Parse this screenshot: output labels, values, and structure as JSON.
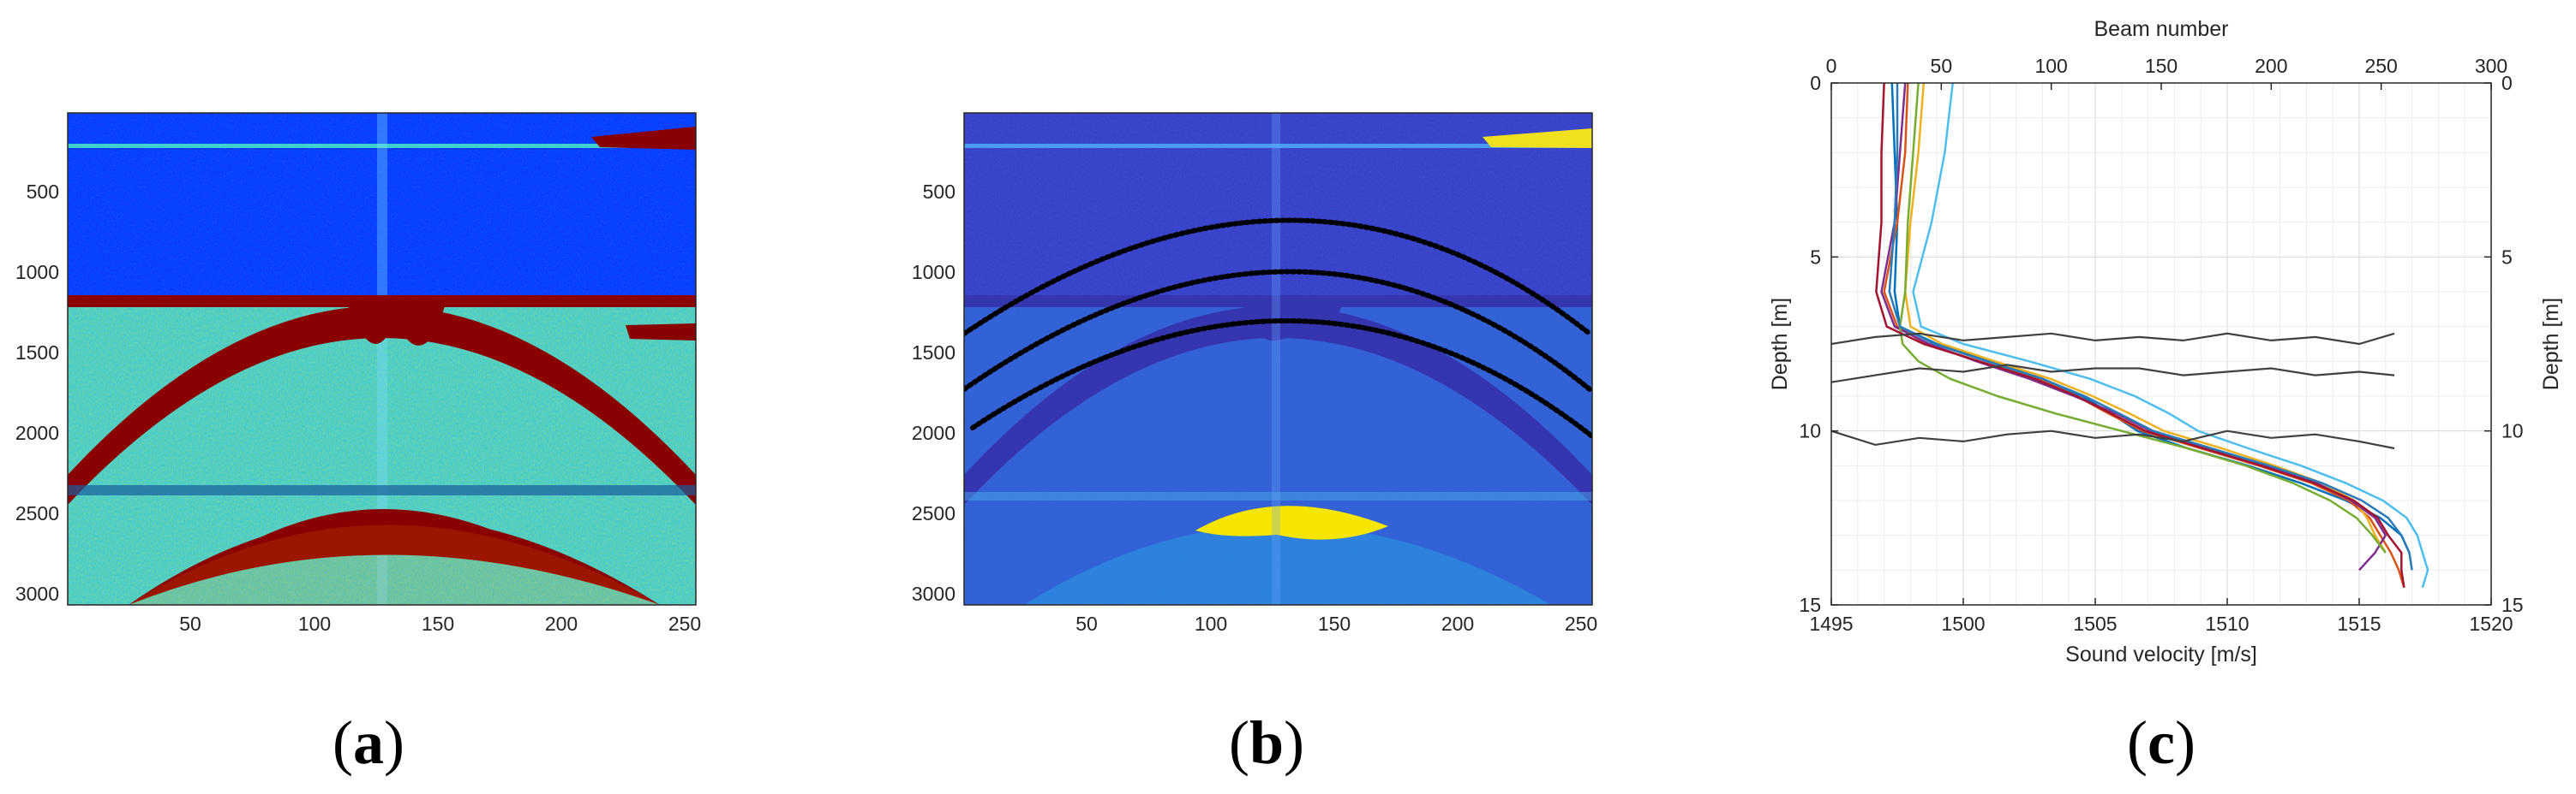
{
  "panels": [
    {
      "id": "a",
      "label": "a",
      "open": "(",
      "close": ")",
      "type": "heatmap",
      "colormap": "jet",
      "y_ticks": [
        "500",
        "1000",
        "1500",
        "2000",
        "2500",
        "3000"
      ],
      "x_ticks": [
        "50",
        "100",
        "150",
        "200",
        "250"
      ]
    },
    {
      "id": "b",
      "label": "b",
      "open": "(",
      "close": ")",
      "type": "heatmap",
      "colormap": "parula",
      "y_ticks": [
        "500",
        "1000",
        "1500",
        "2000",
        "2500",
        "3000"
      ],
      "x_ticks": [
        "50",
        "100",
        "150",
        "200",
        "250"
      ]
    },
    {
      "id": "c",
      "label": "c",
      "open": "(",
      "close": ")",
      "type": "line"
    }
  ],
  "chart_data": [
    {
      "type": "heatmap",
      "panel": "a",
      "x_range": [
        1,
        256
      ],
      "y_range": [
        1,
        3072
      ],
      "x_ticks": [
        50,
        100,
        150,
        200,
        250
      ],
      "y_ticks": [
        500,
        1000,
        1500,
        2000,
        2500,
        3000
      ],
      "colormap": "jet",
      "features": {
        "horizontal_band_y": [
          120,
          1200,
          2400
        ],
        "arc_apex": [
          130,
          1180
        ],
        "arc_ends": [
          [
            1,
            2100
          ],
          [
            256,
            2100
          ]
        ],
        "lower_arc_apex": [
          130,
          2420
        ]
      }
    },
    {
      "type": "heatmap",
      "panel": "b",
      "x_range": [
        1,
        256
      ],
      "y_range": [
        1,
        3072
      ],
      "x_ticks": [
        50,
        100,
        150,
        200,
        250
      ],
      "y_ticks": [
        500,
        1000,
        1500,
        2000,
        2500,
        3000
      ],
      "colormap": "parula",
      "dotted_arcs_apex_y": [
        720,
        860,
        1000
      ]
    },
    {
      "type": "line",
      "panel": "c",
      "xlabel": "Sound velocity [m/s]",
      "ylabel": "Depth [m]",
      "x2label": "Beam number",
      "y2label": "Depth [m]",
      "xlim": [
        1495,
        1520
      ],
      "ylim": [
        15,
        0
      ],
      "x_ticks": [
        1495,
        1500,
        1505,
        1510,
        1515,
        1520
      ],
      "y_ticks": [
        0,
        5,
        10,
        15
      ],
      "x2lim": [
        0,
        300
      ],
      "x2_ticks": [
        0,
        50,
        100,
        150,
        200,
        250,
        300
      ],
      "grid": true,
      "depth_levels": [
        0,
        2,
        4,
        6,
        7,
        7.5,
        8,
        8.5,
        9,
        9.5,
        10,
        10.5,
        11,
        11.5,
        12,
        12.5,
        13,
        13.5,
        14,
        14.5
      ],
      "series": [
        {
          "color": "#0072bd",
          "values": [
            1497.3,
            1497.4,
            1497.5,
            1497.4,
            1497.6,
            1499.0,
            1501.0,
            1503.0,
            1504.5,
            1505.6,
            1506.6,
            1508.5,
            1510.8,
            1512.8,
            1514.5,
            1515.8,
            1516.6,
            1516.9,
            null,
            null
          ]
        },
        {
          "color": "#d95319",
          "values": [
            1497.9,
            1497.8,
            1497.5,
            1497.0,
            1497.5,
            1498.6,
            1500.6,
            1502.8,
            1504.3,
            1505.5,
            1506.8,
            1509.0,
            1511.2,
            1513.2,
            1514.6,
            1515.4,
            1515.8,
            1516.2,
            1516.5,
            1516.7
          ]
        },
        {
          "color": "#edb120",
          "values": [
            1498.5,
            1498.3,
            1498.0,
            1497.8,
            1498.0,
            1499.2,
            1501.2,
            1503.3,
            1504.9,
            1506.3,
            1507.6,
            1509.8,
            1511.8,
            1513.6,
            1514.8,
            1515.3,
            1515.6,
            1516.0,
            null,
            null
          ]
        },
        {
          "color": "#7e2f8e",
          "values": [
            1497.8,
            1497.6,
            1497.4,
            1496.9,
            1497.4,
            1498.7,
            1500.5,
            1502.5,
            1504.2,
            1505.8,
            1507.1,
            1509.3,
            1511.5,
            1513.4,
            1514.7,
            1515.6,
            1516.0,
            1515.6,
            1515.0,
            null
          ]
        },
        {
          "color": "#77ac30",
          "values": [
            1498.3,
            1498.1,
            1497.9,
            1497.8,
            1497.6,
            1497.7,
            1498.3,
            1499.5,
            1501.3,
            1503.5,
            1506.0,
            1508.5,
            1510.7,
            1512.5,
            1513.9,
            1514.9,
            1515.5,
            1516.0,
            null,
            null
          ]
        },
        {
          "color": "#4dbeee",
          "values": [
            1499.6,
            1499.3,
            1498.8,
            1498.1,
            1498.4,
            1500.0,
            1502.5,
            1504.8,
            1506.5,
            1507.8,
            1508.9,
            1510.8,
            1512.8,
            1514.5,
            1515.9,
            1516.8,
            1517.2,
            1517.4,
            1517.6,
            1517.4
          ]
        },
        {
          "color": "#a2142f",
          "values": [
            1497.0,
            1496.9,
            1496.9,
            1496.7,
            1497.1,
            1498.5,
            1500.6,
            1502.7,
            1504.3,
            1505.6,
            1506.9,
            1509.1,
            1511.3,
            1513.3,
            1514.8,
            1515.7,
            1516.1,
            1516.6,
            1516.6,
            1516.7
          ]
        },
        {
          "color": "#2a7ab8",
          "values": [
            1497.5,
            1497.5,
            1497.4,
            1497.2,
            1497.6,
            1498.9,
            1500.9,
            1503.0,
            1504.6,
            1505.9,
            1507.2,
            1509.4,
            1511.6,
            1513.6,
            1515.1,
            1516.1,
            1516.6,
            1516.9,
            1517.0,
            null
          ]
        }
      ],
      "beam_series": [
        {
          "color": "#404040",
          "beam": [
            0,
            20,
            40,
            60,
            80,
            100,
            120,
            140,
            160,
            180,
            200,
            220,
            240,
            256
          ],
          "depth": [
            7.5,
            7.3,
            7.2,
            7.4,
            7.3,
            7.2,
            7.4,
            7.3,
            7.4,
            7.2,
            7.4,
            7.3,
            7.5,
            7.2
          ]
        },
        {
          "color": "#404040",
          "beam": [
            0,
            20,
            40,
            60,
            80,
            100,
            120,
            140,
            160,
            180,
            200,
            220,
            240,
            256
          ],
          "depth": [
            8.6,
            8.4,
            8.2,
            8.3,
            8.1,
            8.3,
            8.2,
            8.2,
            8.4,
            8.3,
            8.2,
            8.4,
            8.3,
            8.4
          ]
        },
        {
          "color": "#404040",
          "beam": [
            0,
            20,
            40,
            60,
            80,
            100,
            120,
            140,
            160,
            180,
            200,
            220,
            240,
            256
          ],
          "depth": [
            10.0,
            10.4,
            10.2,
            10.3,
            10.1,
            10.0,
            10.2,
            10.1,
            10.3,
            10.0,
            10.2,
            10.1,
            10.3,
            10.5
          ]
        }
      ]
    }
  ]
}
